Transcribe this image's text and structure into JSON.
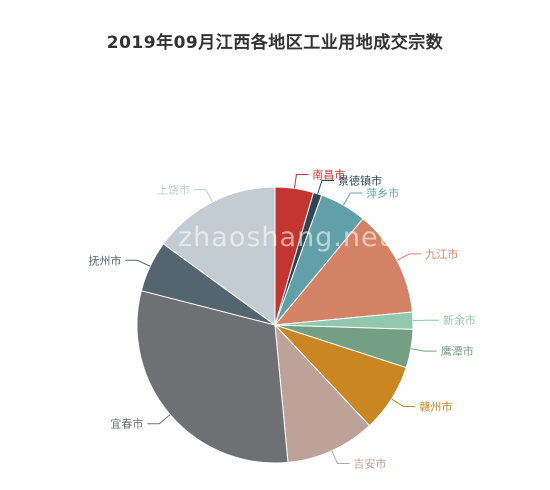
{
  "chart_data": {
    "type": "pie",
    "title": "2019年09月江西各地区工业用地成交宗数",
    "slices": [
      {
        "name": "南昌市",
        "value": 4.5,
        "color": "#c23531"
      },
      {
        "name": "景德镇市",
        "value": 1.0,
        "color": "#2f4554"
      },
      {
        "name": "萍乡市",
        "value": 5.5,
        "color": "#61a0a8"
      },
      {
        "name": "九江市",
        "value": 12.5,
        "color": "#d48265"
      },
      {
        "name": "新余市",
        "value": 2.0,
        "color": "#91c7ae"
      },
      {
        "name": "鹰潭市",
        "value": 4.5,
        "color": "#749f83"
      },
      {
        "name": "赣州市",
        "value": 8.0,
        "color": "#ca8622"
      },
      {
        "name": "吉安市",
        "value": 10.5,
        "color": "#bda29a"
      },
      {
        "name": "宜春市",
        "value": 30.5,
        "color": "#6e7074"
      },
      {
        "name": "抚州市",
        "value": 6.0,
        "color": "#546570"
      },
      {
        "name": "上饶市",
        "value": 15.0,
        "color": "#c4ccd3"
      }
    ]
  },
  "watermark": "zhaoshang.net"
}
